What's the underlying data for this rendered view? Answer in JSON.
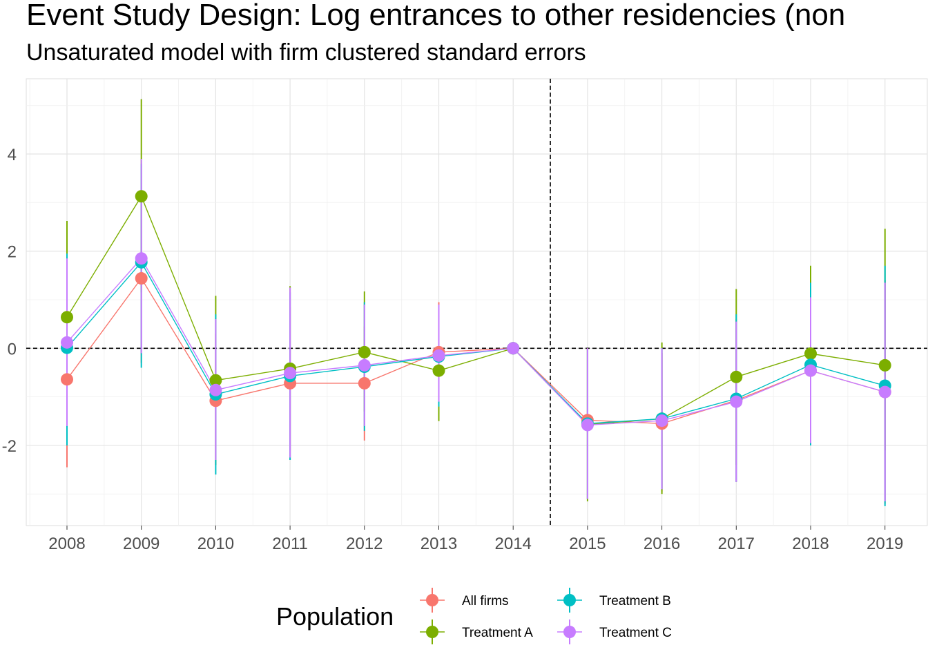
{
  "title": "Event Study Design: Log entrances to other residencies (non",
  "subtitle": "Unsaturated model with firm clustered standard errors",
  "chart_data": {
    "type": "line",
    "title": "Event Study Design: Log entrances to other residencies (non",
    "subtitle": "Unsaturated model with firm clustered standard errors",
    "xlabel": "",
    "ylabel": "",
    "categories": [
      "2008",
      "2009",
      "2010",
      "2011",
      "2012",
      "2013",
      "2014",
      "2015",
      "2016",
      "2017",
      "2018",
      "2019"
    ],
    "yticks": [
      -2,
      0,
      2,
      4
    ],
    "ylim": [
      -3.65,
      5.55
    ],
    "grid": true,
    "reference_lines": {
      "horizontal_y": 0,
      "vertical_between": [
        "2014",
        "2015"
      ]
    },
    "legend": {
      "title": "Population",
      "position": "bottom"
    },
    "series": [
      {
        "name": "All firms",
        "color": "#F8766D",
        "values": [
          -0.64,
          1.44,
          -1.08,
          -0.72,
          -0.72,
          -0.08,
          0.0,
          -1.48,
          -1.55,
          -1.07,
          -0.46,
          -0.9
        ],
        "lower": [
          -2.45,
          -0.3,
          -2.4,
          -2.3,
          -1.9,
          -1.2,
          0.0,
          -3.1,
          -2.95,
          -2.75,
          -2.0,
          -3.2
        ],
        "upper": [
          1.15,
          3.2,
          0.3,
          0.85,
          0.45,
          0.95,
          0.0,
          0.0,
          -0.1,
          0.6,
          1.1,
          1.4
        ]
      },
      {
        "name": "Treatment A",
        "color": "#7CAE00",
        "values": [
          0.64,
          3.13,
          -0.66,
          -0.42,
          -0.08,
          -0.46,
          0.0,
          -1.57,
          -1.45,
          -0.59,
          -0.11,
          -0.35
        ],
        "lower": [
          -1.35,
          1.15,
          -2.4,
          -2.1,
          -1.3,
          -1.5,
          0.0,
          -3.15,
          -3.0,
          -2.4,
          -1.9,
          -2.1
        ],
        "upper": [
          2.62,
          5.13,
          1.08,
          1.28,
          1.17,
          0.6,
          0.0,
          -0.02,
          0.12,
          1.22,
          1.7,
          2.46
        ]
      },
      {
        "name": "Treatment B",
        "color": "#00BFC4",
        "values": [
          0.01,
          1.77,
          -0.95,
          -0.57,
          -0.38,
          -0.17,
          0.0,
          -1.55,
          -1.45,
          -1.04,
          -0.34,
          -0.77
        ],
        "lower": [
          -2.0,
          -0.4,
          -2.6,
          -2.3,
          -1.7,
          -1.2,
          0.0,
          -3.1,
          -2.9,
          -2.75,
          -2.0,
          -3.25
        ],
        "upper": [
          1.95,
          3.8,
          0.7,
          1.15,
          0.95,
          0.85,
          0.0,
          -0.02,
          0.0,
          0.7,
          1.35,
          1.7
        ]
      },
      {
        "name": "Treatment C",
        "color": "#C77CFF",
        "values": [
          0.12,
          1.85,
          -0.86,
          -0.51,
          -0.35,
          -0.15,
          0.0,
          -1.58,
          -1.49,
          -1.1,
          -0.46,
          -0.9
        ],
        "lower": [
          -1.6,
          -0.1,
          -2.3,
          -2.25,
          -1.6,
          -1.1,
          0.0,
          -3.1,
          -2.9,
          -2.75,
          -1.95,
          -3.15
        ],
        "upper": [
          1.85,
          3.9,
          0.6,
          1.25,
          0.9,
          0.9,
          0.0,
          0.0,
          0.0,
          0.55,
          1.05,
          1.35
        ]
      }
    ]
  }
}
